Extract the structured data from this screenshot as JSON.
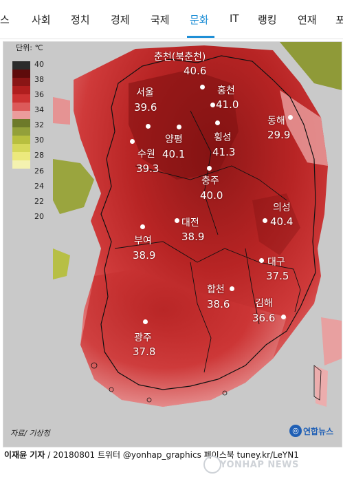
{
  "nav": {
    "items": [
      "스",
      "사회",
      "정치",
      "경제",
      "국제",
      "문화",
      "IT",
      "랭킹",
      "연재",
      "포"
    ],
    "active": "문화"
  },
  "figure": {
    "unit_label": "단위: ℃",
    "legend": {
      "ticks": [
        "40",
        "38",
        "36",
        "34",
        "32",
        "30",
        "28",
        "26",
        "24",
        "22",
        "20"
      ],
      "colors": [
        "#2b2b2b",
        "#5e0b0b",
        "#8a1515",
        "#b01e1e",
        "#cc3232",
        "#dc5a5a",
        "#eb9c9c",
        "#6d7a2a",
        "#93a03a",
        "#b8bf3f",
        "#d6d85a",
        "#ece97d",
        "#f4f2b0"
      ]
    },
    "cities": [
      {
        "name": "춘천(북춘천)",
        "value": "40.6"
      },
      {
        "name": "서울",
        "value": "39.6"
      },
      {
        "name": "홍천",
        "value": "41.0"
      },
      {
        "name": "동해",
        "value": "29.9"
      },
      {
        "name": "횡성",
        "value": "41.3"
      },
      {
        "name": "양평",
        "value": "40.1"
      },
      {
        "name": "수원",
        "value": "39.3"
      },
      {
        "name": "충주",
        "value": "40.0"
      },
      {
        "name": "의성",
        "value": "40.4"
      },
      {
        "name": "대전",
        "value": "38.9"
      },
      {
        "name": "부여",
        "value": "38.9"
      },
      {
        "name": "대구",
        "value": "37.5"
      },
      {
        "name": "합천",
        "value": "38.6"
      },
      {
        "name": "김해",
        "value": "36.6"
      },
      {
        "name": "광주",
        "value": "37.8"
      }
    ],
    "source": "자료/ 기상청",
    "brand": "연합뉴스"
  },
  "caption": {
    "author": "이재윤 기자",
    "rest": " / 20180801   트위터 @yonhap_graphics  페이스북 tuney.kr/LeYN1"
  },
  "watermark": "YONHAP NEWS"
}
